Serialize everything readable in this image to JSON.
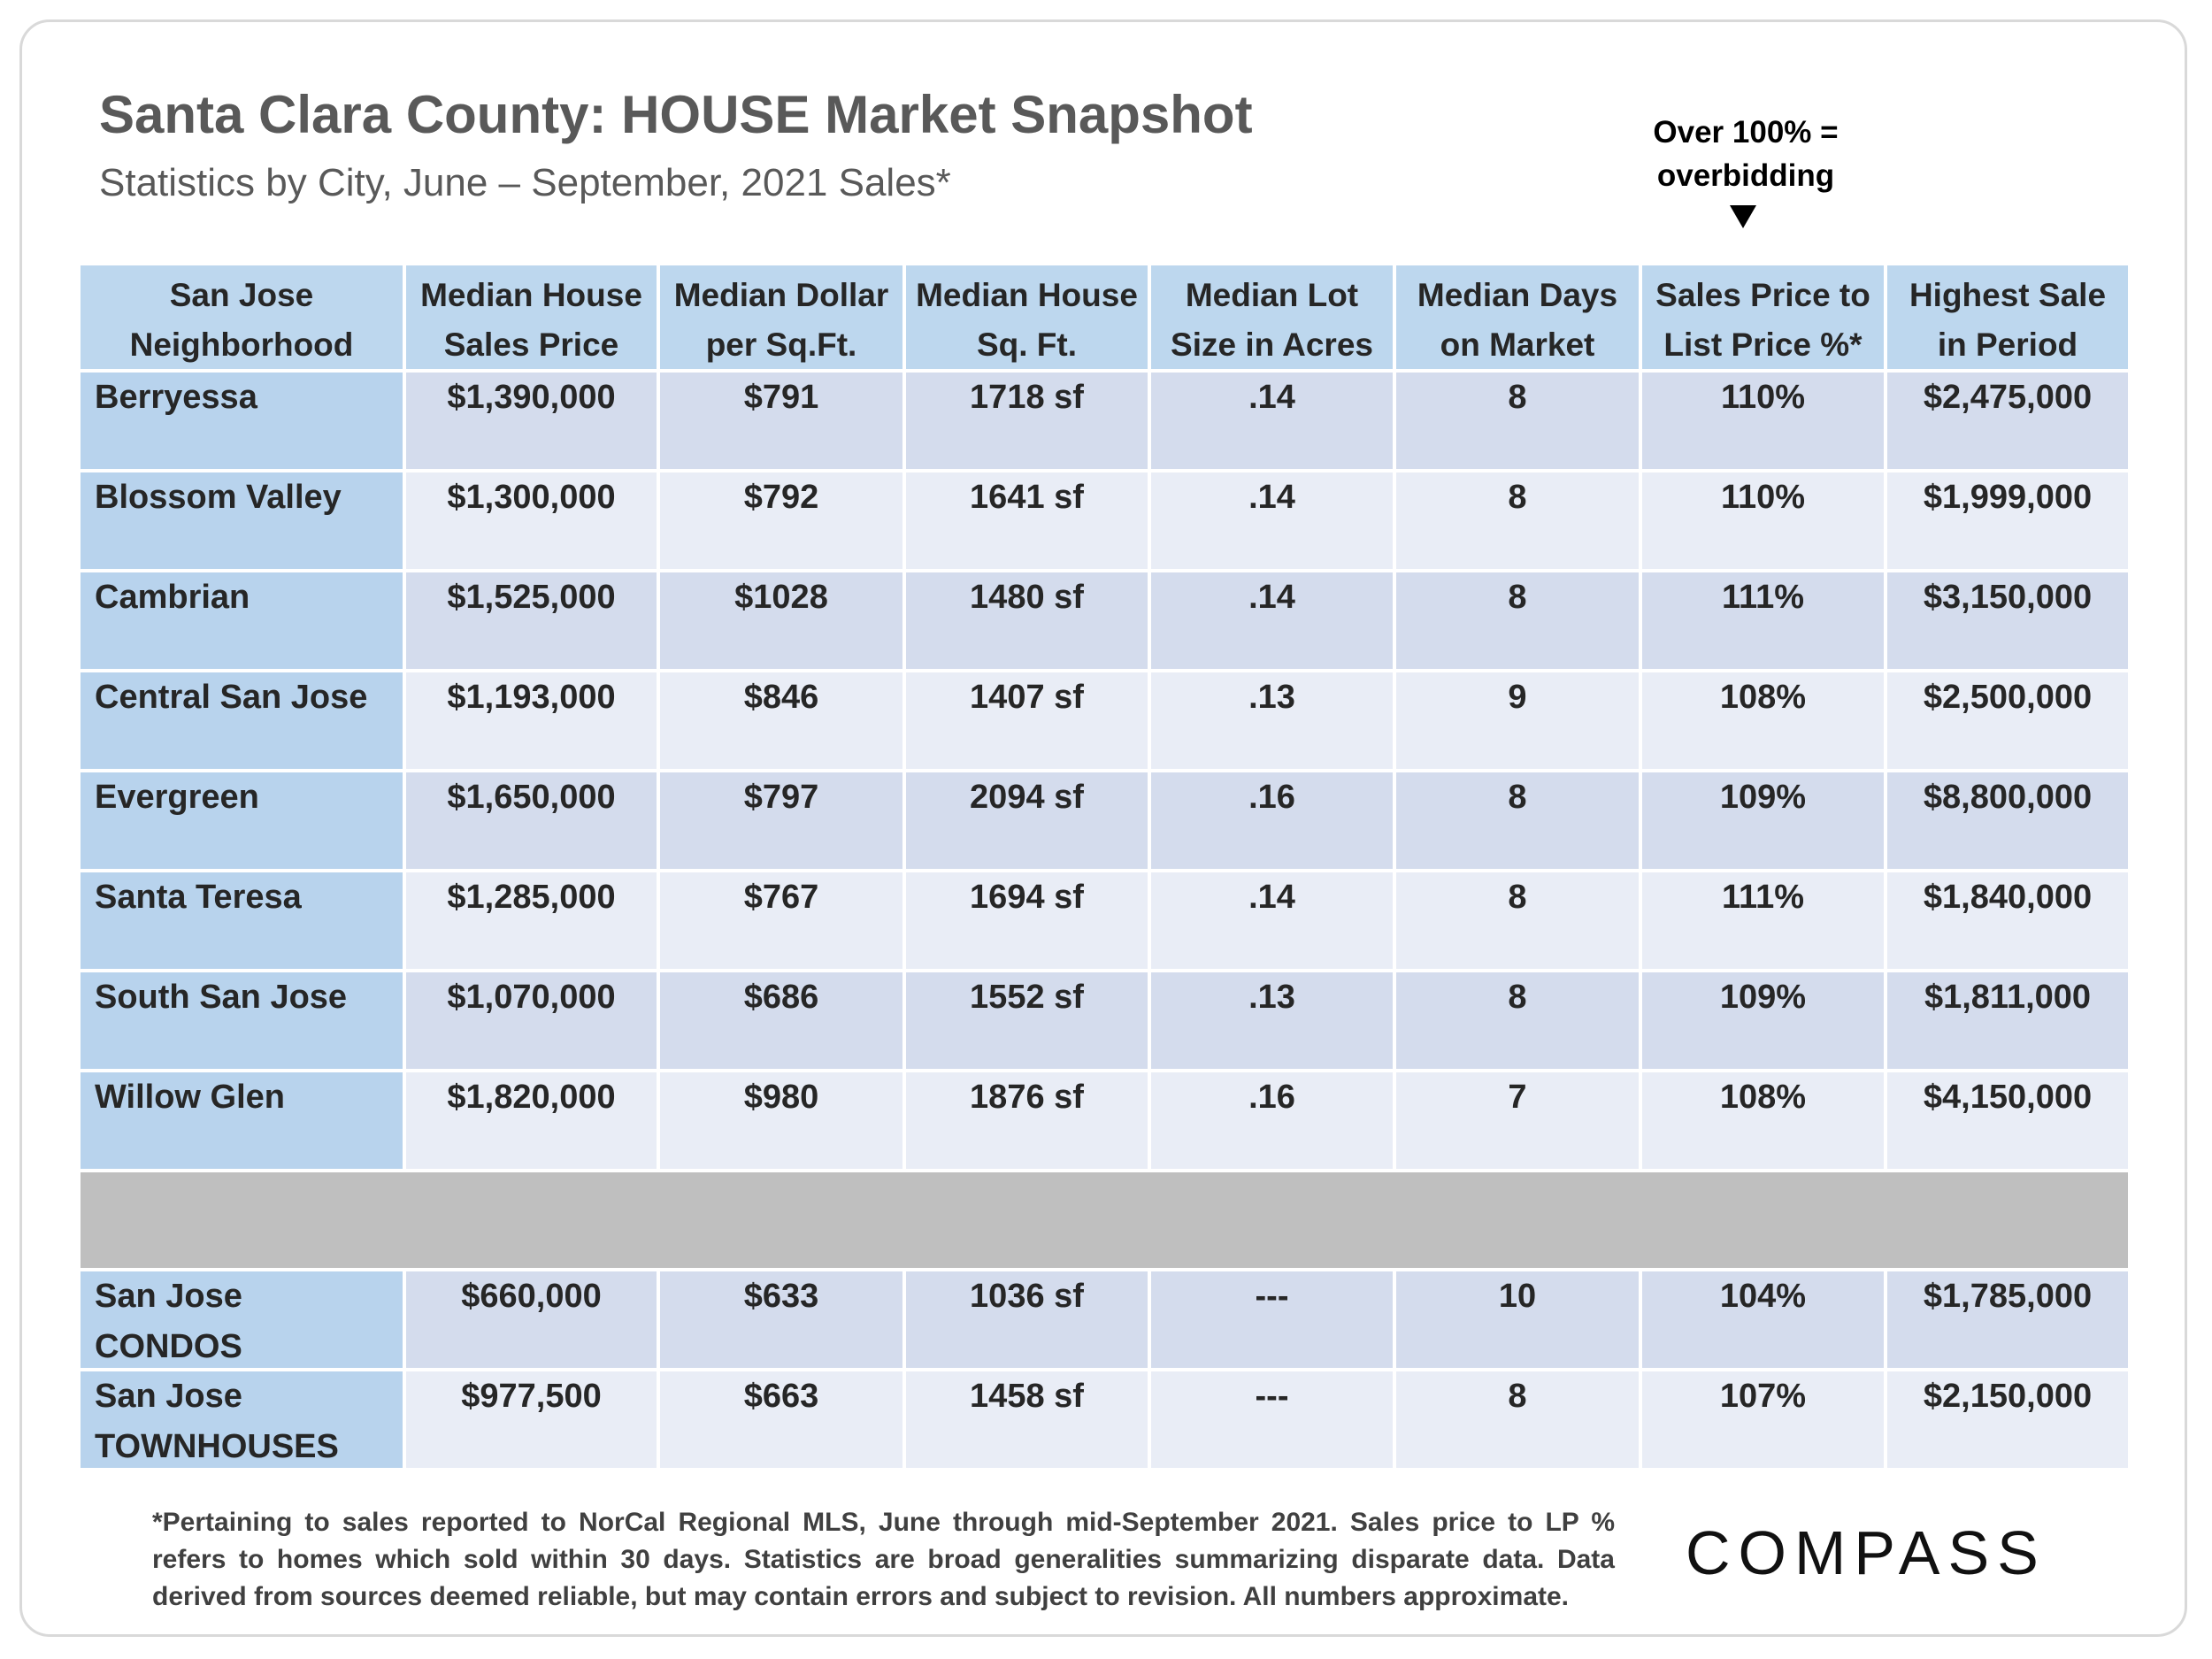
{
  "header": {
    "title": "Santa Clara County: HOUSE Market Snapshot",
    "subtitle": "Statistics by City, June – September, 2021 Sales*"
  },
  "note": {
    "lines": [
      "Over 100% =",
      "overbidding"
    ]
  },
  "table": {
    "columns": [
      "San Jose\nNeighborhood",
      "Median House\nSales Price",
      "Median Dollar\nper Sq.Ft.",
      "Median House\nSq. Ft.",
      "Median Lot\nSize in Acres",
      "Median Days\non Market",
      "Sales Price to\nList Price %*",
      "Highest Sale\nin Period"
    ],
    "rows": [
      [
        "Berryessa",
        "$1,390,000",
        "$791",
        "1718 sf",
        ".14",
        "8",
        "110%",
        "$2,475,000"
      ],
      [
        "Blossom Valley",
        "$1,300,000",
        "$792",
        "1641 sf",
        ".14",
        "8",
        "110%",
        "$1,999,000"
      ],
      [
        "Cambrian",
        "$1,525,000",
        "$1028",
        "1480 sf",
        ".14",
        "8",
        "111%",
        "$3,150,000"
      ],
      [
        "Central San Jose",
        "$1,193,000",
        "$846",
        "1407 sf",
        ".13",
        "9",
        "108%",
        "$2,500,000"
      ],
      [
        "Evergreen",
        "$1,650,000",
        "$797",
        "2094 sf",
        ".16",
        "8",
        "109%",
        "$8,800,000"
      ],
      [
        "Santa Teresa",
        "$1,285,000",
        "$767",
        "1694 sf",
        ".14",
        "8",
        "111%",
        "$1,840,000"
      ],
      [
        "South San Jose",
        "$1,070,000",
        "$686",
        "1552 sf",
        ".13",
        "8",
        "109%",
        "$1,811,000"
      ],
      [
        "Willow Glen",
        "$1,820,000",
        "$980",
        "1876 sf",
        ".16",
        "7",
        "108%",
        "$4,150,000"
      ],
      [
        "San Jose\nCONDOS",
        "$660,000",
        "$633",
        "1036 sf",
        "---",
        "10",
        "104%",
        "$1,785,000"
      ],
      [
        "San Jose\nTOWNHOUSES",
        "$977,500",
        "$663",
        "1458 sf",
        "---",
        "8",
        "107%",
        "$2,150,000"
      ]
    ]
  },
  "footnote": "*Pertaining to sales reported to NorCal Regional MLS, June through mid-September 2021. Sales price to LP % refers to homes which sold within 30 days. Statistics are broad generalities summarizing disparate data. Data derived from sources deemed reliable, but may contain errors and subject to revision. All numbers approximate.",
  "logo": "COMPASS"
}
